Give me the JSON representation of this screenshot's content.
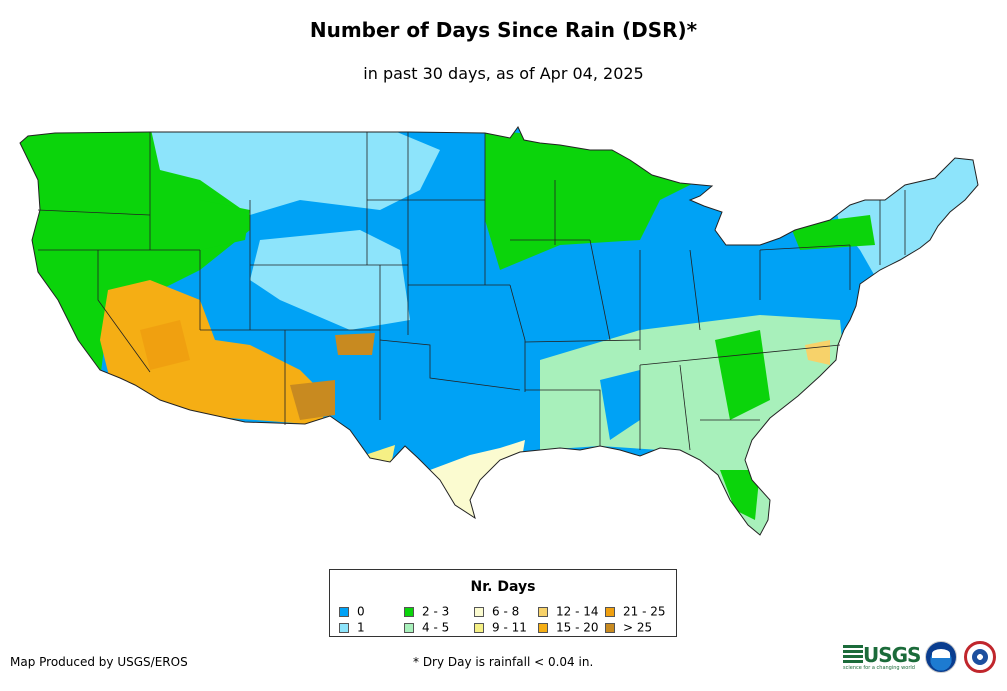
{
  "title": "Number of Days Since Rain (DSR)*",
  "subtitle": "in past 30 days, as of Apr 04, 2025",
  "legend": {
    "title": "Nr. Days",
    "items": [
      {
        "label": "0",
        "color": "#00a2f5"
      },
      {
        "label": "1",
        "color": "#8de4fb"
      },
      {
        "label": "2 - 3",
        "color": "#0bd40b"
      },
      {
        "label": "4 - 5",
        "color": "#a8f0bb"
      },
      {
        "label": "6 - 8",
        "color": "#fbfbd0"
      },
      {
        "label": "9 - 11",
        "color": "#f5f085"
      },
      {
        "label": "12 - 14",
        "color": "#f7d26a"
      },
      {
        "label": "15 - 20",
        "color": "#f5ae14"
      },
      {
        "label": "21 - 25",
        "color": "#f0a010"
      },
      {
        "label": "> 25",
        "color": "#c88a20"
      }
    ]
  },
  "credit": "Map Produced by USGS/EROS",
  "footnote": "* Dry Day is rainfall < 0.04 in.",
  "logos": {
    "usgs": "USGS",
    "usgs_tagline": "science for a changing world"
  },
  "map": {
    "region": "Contiguous United States",
    "region_days": {
      "west_coast": "2 - 3",
      "southwest": "15 - 20",
      "central_plains": "0",
      "midwest": "0",
      "upper_midwest": "2 - 3",
      "northern_rockies": "1",
      "northeast": "1",
      "southeast": "4 - 5",
      "south_texas": "6 - 8"
    }
  }
}
